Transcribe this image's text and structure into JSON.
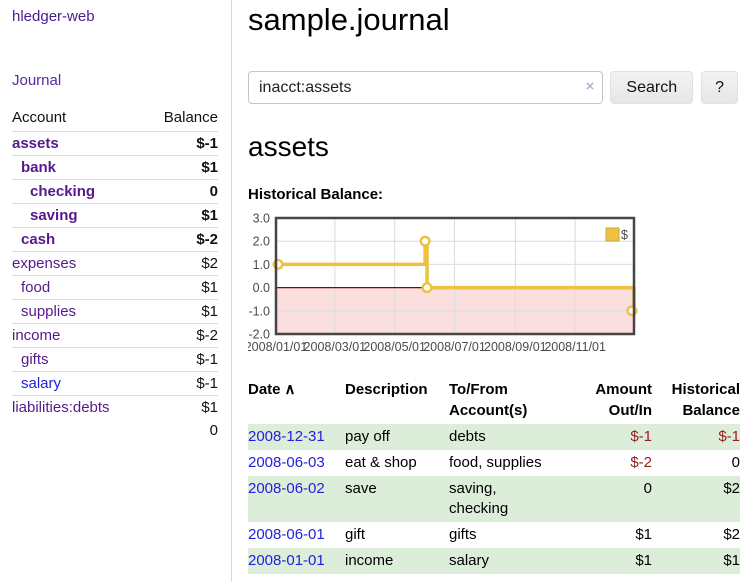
{
  "app": {
    "title": "hledger-web",
    "nav_journal": "Journal"
  },
  "colors": {
    "link_purple": "#551a8b",
    "link_blue": "#2222dd",
    "negative_strong": "#991414",
    "negative_soft": "#b36b6b",
    "row_stripe_green": "#dcedda",
    "chart_series": "#edc240",
    "chart_negative_fill": "#fbdede",
    "chart_zero_line": "#8b0000"
  },
  "sidebar": {
    "accounts_header": {
      "account": "Account",
      "balance": "Balance"
    },
    "accounts": [
      {
        "name": "assets",
        "balance": "$-1",
        "indent": 1,
        "bold": true,
        "neg": "strong",
        "link_style": "purple"
      },
      {
        "name": "bank",
        "balance": "$1",
        "indent": 2,
        "bold": true,
        "neg": "none",
        "link_style": "purple"
      },
      {
        "name": "checking",
        "balance": "0",
        "indent": 3,
        "bold": true,
        "neg": "none",
        "link_style": "purple"
      },
      {
        "name": "saving",
        "balance": "$1",
        "indent": 3,
        "bold": true,
        "neg": "none",
        "link_style": "purple"
      },
      {
        "name": "cash",
        "balance": "$-2",
        "indent": 2,
        "bold": true,
        "neg": "strong",
        "link_style": "purple"
      },
      {
        "name": "expenses",
        "balance": "$2",
        "indent": 1,
        "bold": false,
        "neg": "none",
        "link_style": "purple"
      },
      {
        "name": "food",
        "balance": "$1",
        "indent": 2,
        "bold": false,
        "neg": "none",
        "link_style": "purple"
      },
      {
        "name": "supplies",
        "balance": "$1",
        "indent": 2,
        "bold": false,
        "neg": "none",
        "link_style": "purple"
      },
      {
        "name": "income",
        "balance": "$-2",
        "indent": 1,
        "bold": false,
        "neg": "soft",
        "link_style": "purple"
      },
      {
        "name": "gifts",
        "balance": "$-1",
        "indent": 2,
        "bold": false,
        "neg": "soft",
        "link_style": "purple"
      },
      {
        "name": "salary",
        "balance": "$-1",
        "indent": 2,
        "bold": false,
        "neg": "soft",
        "link_style": "blue"
      },
      {
        "name": "liabilities:debts",
        "balance": "$1",
        "indent": 1,
        "bold": false,
        "neg": "none",
        "link_style": "purple"
      }
    ],
    "total": "0"
  },
  "header": {
    "title": "sample.journal"
  },
  "search": {
    "value": "inacct:assets",
    "clear_icon": "×",
    "button": "Search",
    "help_button": "?"
  },
  "account_page": {
    "title": "assets",
    "chart_label": "Historical Balance:"
  },
  "chart_data": {
    "type": "line",
    "title": "Historical Balance:",
    "step": true,
    "x_range": [
      "2008-01-01",
      "2008-12-31"
    ],
    "ylim": [
      -2,
      3
    ],
    "x_ticks": [
      "2008/01/01",
      "2008/03/01",
      "2008/05/01",
      "2008/07/01",
      "2008/09/01",
      "2008/11/01"
    ],
    "y_ticks": [
      "3.0",
      "2.0",
      "1.0",
      "0.0",
      "-1.0",
      "-2.0"
    ],
    "grid": true,
    "legend_position": "top-right",
    "series": [
      {
        "name": "$",
        "color": "#edc240",
        "points": [
          [
            "2008-01-01",
            1
          ],
          [
            "2008-06-01",
            2
          ],
          [
            "2008-06-03",
            0
          ],
          [
            "2008-12-31",
            -1
          ]
        ]
      }
    ]
  },
  "register": {
    "headers": [
      {
        "lines": [
          "Date"
        ],
        "sort": "∧",
        "align": "left"
      },
      {
        "lines": [
          "Description"
        ],
        "sort": "",
        "align": "left"
      },
      {
        "lines": [
          "To/From",
          "Account(s)"
        ],
        "sort": "",
        "align": "left"
      },
      {
        "lines": [
          "Amount",
          "Out/In"
        ],
        "sort": "",
        "align": "right"
      },
      {
        "lines": [
          "Historical",
          "Balance"
        ],
        "sort": "",
        "align": "right"
      }
    ],
    "rows": [
      {
        "date": "2008-12-31",
        "description": "pay off",
        "accounts": [
          "debts"
        ],
        "amount": "$-1",
        "balance": "$-1",
        "amount_negative": true,
        "balance_negative": true
      },
      {
        "date": "2008-06-03",
        "description": "eat & shop",
        "accounts": [
          "food, supplies"
        ],
        "amount": "$-2",
        "balance": "0",
        "amount_negative": true,
        "balance_negative": false
      },
      {
        "date": "2008-06-02",
        "description": "save",
        "accounts": [
          "saving,",
          "checking"
        ],
        "amount": "0",
        "balance": "$2",
        "amount_negative": false,
        "balance_negative": false
      },
      {
        "date": "2008-06-01",
        "description": "gift",
        "accounts": [
          "gifts"
        ],
        "amount": "$1",
        "balance": "$2",
        "amount_negative": false,
        "balance_negative": false
      },
      {
        "date": "2008-01-01",
        "description": "income",
        "accounts": [
          "salary"
        ],
        "amount": "$1",
        "balance": "$1",
        "amount_negative": false,
        "balance_negative": false
      }
    ]
  }
}
